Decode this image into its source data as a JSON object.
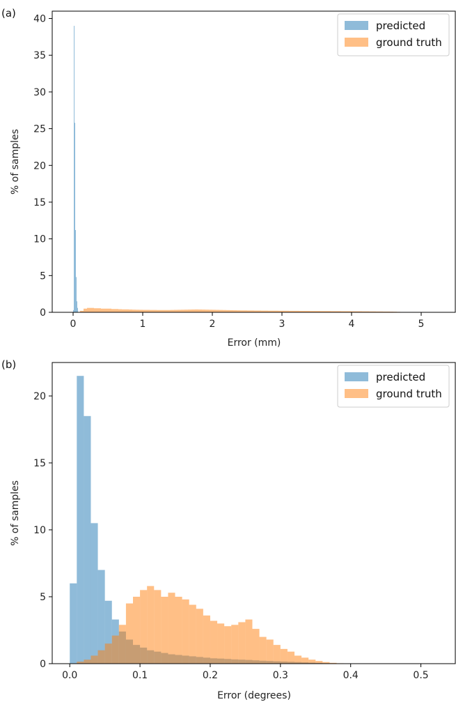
{
  "chart_data": [
    {
      "type": "bar",
      "panel_label": "(a)",
      "xlabel": "Error (mm)",
      "ylabel": "% of samples",
      "xlim": [
        -0.3,
        5.5
      ],
      "ylim": [
        0,
        41
      ],
      "xticks": [
        0,
        1,
        2,
        3,
        4,
        5
      ],
      "yticks": [
        0,
        5,
        10,
        15,
        20,
        25,
        30,
        35,
        40
      ],
      "legend_position": "top-right",
      "series": [
        {
          "name": "predicted",
          "color": "#1f77b4",
          "bin_width": 0.01,
          "bin_start": 0.0,
          "values": [
            0.3,
            39.0,
            25.8,
            11.2,
            4.8,
            1.5,
            0.6
          ]
        },
        {
          "name": "ground truth",
          "color": "#ff7f0e",
          "bin_width": 0.05,
          "bin_start": 0.1,
          "values": [
            0.2,
            0.5,
            0.6,
            0.6,
            0.55,
            0.55,
            0.5,
            0.5,
            0.5,
            0.45,
            0.45,
            0.42,
            0.4,
            0.4,
            0.38,
            0.36,
            0.35,
            0.34,
            0.33,
            0.33,
            0.32,
            0.32,
            0.31,
            0.31,
            0.31,
            0.31,
            0.32,
            0.33,
            0.34,
            0.35,
            0.36,
            0.37,
            0.38,
            0.39,
            0.38,
            0.37,
            0.36,
            0.35,
            0.34,
            0.33,
            0.32,
            0.31,
            0.3,
            0.29,
            0.28,
            0.27,
            0.26,
            0.26,
            0.25,
            0.25,
            0.24,
            0.24,
            0.23,
            0.23,
            0.22,
            0.22,
            0.22,
            0.21,
            0.21,
            0.21,
            0.2,
            0.2,
            0.2,
            0.19,
            0.19,
            0.19,
            0.18,
            0.18,
            0.18,
            0.17,
            0.17,
            0.17,
            0.16,
            0.16,
            0.16,
            0.15,
            0.15,
            0.15,
            0.14,
            0.14,
            0.14,
            0.13,
            0.13,
            0.12,
            0.12,
            0.11,
            0.11,
            0.1,
            0.1,
            0.09,
            0.08,
            0.06
          ]
        }
      ]
    },
    {
      "type": "bar",
      "panel_label": "(b)",
      "xlabel": "Error (degrees)",
      "ylabel": "% of samples",
      "xlim": [
        -0.025,
        0.55
      ],
      "ylim": [
        0,
        22.5
      ],
      "xticks": [
        0.0,
        0.1,
        0.2,
        0.3,
        0.4,
        0.5
      ],
      "yticks": [
        0,
        5,
        10,
        15,
        20
      ],
      "legend_position": "top-right",
      "series": [
        {
          "name": "predicted",
          "color": "#1f77b4",
          "bin_width": 0.01,
          "bin_start": 0.0,
          "values": [
            6.0,
            21.5,
            18.5,
            10.5,
            7.0,
            4.7,
            3.3,
            2.4,
            1.8,
            1.4,
            1.2,
            1.0,
            0.9,
            0.8,
            0.7,
            0.65,
            0.6,
            0.55,
            0.5,
            0.45,
            0.4,
            0.38,
            0.35,
            0.32,
            0.3,
            0.28,
            0.25,
            0.22,
            0.2,
            0.18,
            0.16,
            0.14,
            0.12,
            0.1,
            0.08,
            0.06,
            0.04,
            0.03,
            0.02,
            0.01
          ]
        },
        {
          "name": "ground truth",
          "color": "#ff7f0e",
          "bin_width": 0.01,
          "bin_start": 0.0,
          "values": [
            0.0,
            0.15,
            0.3,
            0.6,
            1.0,
            1.5,
            2.1,
            2.9,
            4.5,
            5.0,
            5.5,
            5.8,
            5.5,
            5.0,
            5.3,
            5.0,
            4.8,
            4.4,
            4.1,
            3.6,
            3.2,
            3.0,
            2.8,
            2.9,
            3.1,
            3.3,
            2.6,
            2.0,
            1.8,
            1.4,
            1.1,
            0.9,
            0.6,
            0.45,
            0.3,
            0.2,
            0.12,
            0.06,
            0.03,
            0.01,
            0.0
          ]
        }
      ]
    }
  ]
}
